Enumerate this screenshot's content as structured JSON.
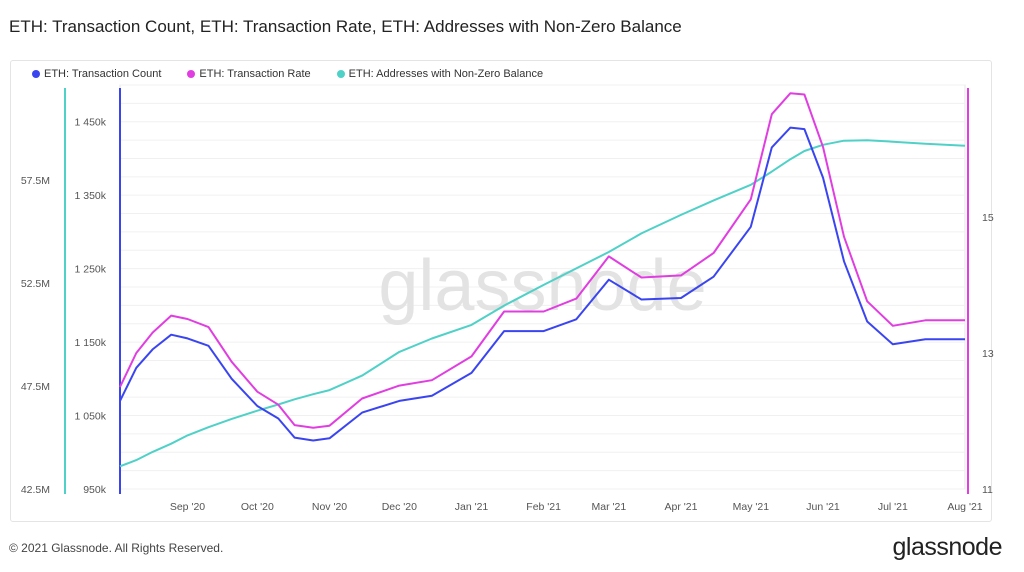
{
  "title": "ETH: Transaction Count, ETH: Transaction Rate, ETH: Addresses with Non-Zero Balance",
  "footer": "© 2021 Glassnode. All Rights Reserved.",
  "brand": "glassnode",
  "watermark": "glassnode",
  "chart_data": {
    "type": "line",
    "title": "ETH: Transaction Count, ETH: Transaction Rate, ETH: Addresses with Non-Zero Balance",
    "legend_position": "top-left",
    "grid": true,
    "xlim": [
      "2020-08-03",
      "2021-08-01"
    ],
    "x_ticks": [
      {
        "date": "2020-09-01",
        "label": "Sep '20"
      },
      {
        "date": "2020-10-01",
        "label": "Oct '20"
      },
      {
        "date": "2020-11-01",
        "label": "Nov '20"
      },
      {
        "date": "2020-12-01",
        "label": "Dec '20"
      },
      {
        "date": "2021-01-01",
        "label": "Jan '21"
      },
      {
        "date": "2021-02-01",
        "label": "Feb '21"
      },
      {
        "date": "2021-03-01",
        "label": "Mar '21"
      },
      {
        "date": "2021-04-01",
        "label": "Apr '21"
      },
      {
        "date": "2021-05-01",
        "label": "May '21"
      },
      {
        "date": "2021-06-01",
        "label": "Jun '21"
      },
      {
        "date": "2021-07-01",
        "label": "Jul '21"
      },
      {
        "date": "2021-08-01",
        "label": "Aug '21"
      }
    ],
    "axes": {
      "count": {
        "range": [
          950,
          1500
        ],
        "ticks": [
          950,
          1050,
          1150,
          1250,
          1350,
          1450
        ],
        "labels": [
          "950k",
          "1 050k",
          "1 150k",
          "1 250k",
          "1 350k",
          "1 450k"
        ]
      },
      "addresses": {
        "range": [
          42.5,
          62.1
        ],
        "ticks": [
          42.5,
          47.5,
          52.5,
          57.5
        ],
        "labels": [
          "42.5M",
          "47.5M",
          "52.5M",
          "57.5M"
        ]
      },
      "rate": {
        "range": [
          11,
          16.94
        ],
        "ticks": [
          11,
          13,
          15
        ],
        "labels": [
          "11",
          "13",
          "15"
        ]
      }
    },
    "x": [
      "2020-08-03",
      "2020-08-10",
      "2020-08-17",
      "2020-08-25",
      "2020-09-01",
      "2020-09-10",
      "2020-09-20",
      "2020-10-01",
      "2020-10-10",
      "2020-10-17",
      "2020-10-25",
      "2020-11-01",
      "2020-11-15",
      "2020-12-01",
      "2020-12-15",
      "2021-01-01",
      "2021-01-15",
      "2021-02-01",
      "2021-02-15",
      "2021-03-01",
      "2021-03-15",
      "2021-04-01",
      "2021-04-15",
      "2021-05-01",
      "2021-05-10",
      "2021-05-18",
      "2021-05-24",
      "2021-06-01",
      "2021-06-10",
      "2021-06-20",
      "2021-07-01",
      "2021-07-15",
      "2021-08-01"
    ],
    "series": [
      {
        "name": "ETH: Transaction Count",
        "axis": "count",
        "color": "#3a45f0",
        "values": [
          1070,
          1115,
          1140,
          1160,
          1155,
          1145,
          1100,
          1063,
          1046,
          1020,
          1016,
          1019,
          1054,
          1070,
          1077,
          1108,
          1165,
          1165,
          1181,
          1235,
          1208,
          1210,
          1239,
          1307,
          1415,
          1442,
          1440,
          1374,
          1260,
          1178,
          1147,
          1154,
          1154
        ]
      },
      {
        "name": "ETH: Transaction Rate",
        "axis": "rate",
        "color": "#e03ee0",
        "values": [
          12.5,
          13.0,
          13.3,
          13.55,
          13.5,
          13.38,
          12.87,
          12.43,
          12.24,
          11.94,
          11.9,
          11.93,
          12.33,
          12.52,
          12.6,
          12.95,
          13.61,
          13.61,
          13.8,
          14.42,
          14.11,
          14.14,
          14.47,
          15.26,
          16.51,
          16.82,
          16.8,
          16.03,
          14.71,
          13.76,
          13.4,
          13.48,
          13.48
        ]
      },
      {
        "name": "ETH: Addresses with Non-Zero Balance",
        "axis": "addresses",
        "color": "#4fd1c8",
        "values": [
          43.6,
          43.9,
          44.3,
          44.7,
          45.1,
          45.5,
          45.9,
          46.3,
          46.6,
          46.85,
          47.1,
          47.3,
          48.0,
          49.15,
          49.8,
          50.46,
          51.4,
          52.4,
          53.2,
          54.0,
          54.9,
          55.8,
          56.5,
          57.26,
          57.9,
          58.5,
          58.9,
          59.2,
          59.4,
          59.42,
          59.35,
          59.25,
          59.15
        ]
      }
    ]
  }
}
